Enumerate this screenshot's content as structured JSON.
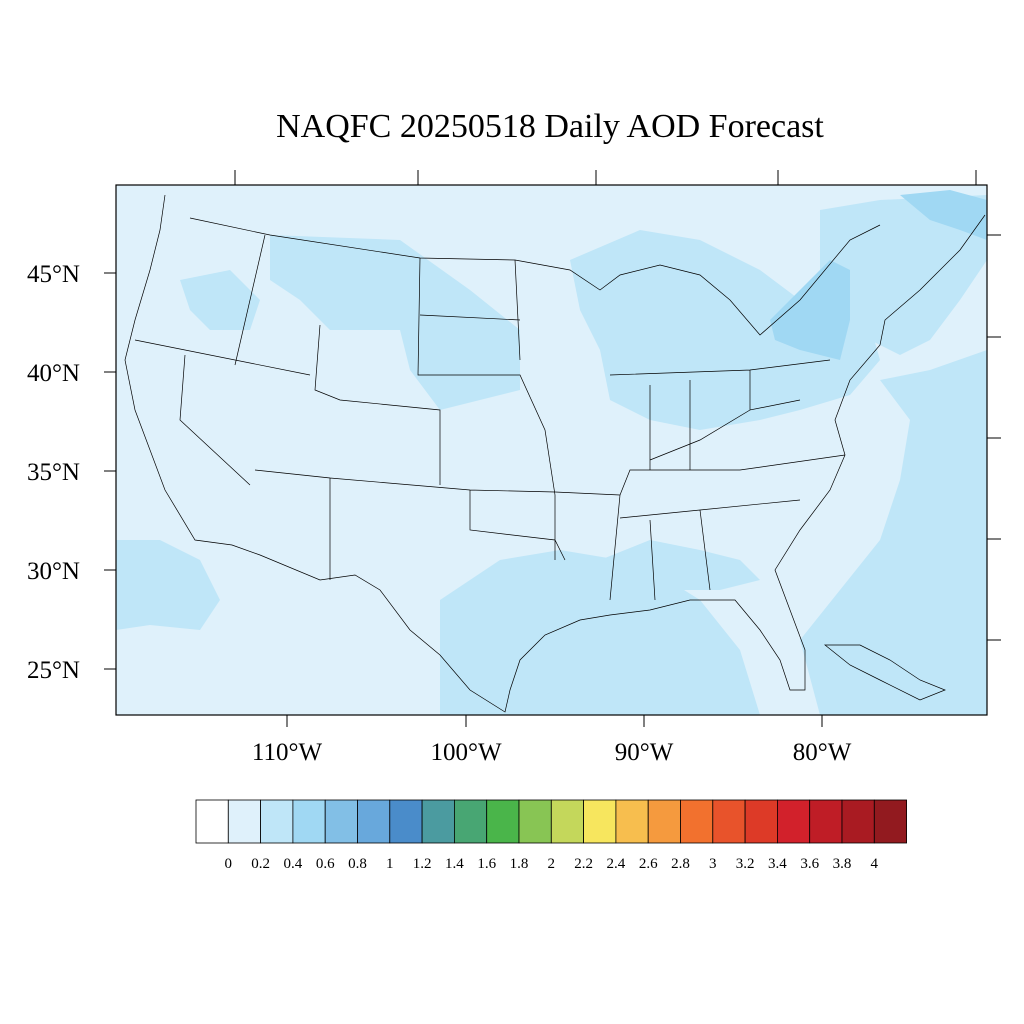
{
  "title": "NAQFC 20250518 Daily AOD Forecast",
  "lat_labels": [
    "45°N",
    "40°N",
    "35°N",
    "30°N",
    "25°N"
  ],
  "lon_labels": [
    "110°W",
    "100°W",
    "90°W",
    "80°W"
  ],
  "colorbar": {
    "colors": [
      "#ffffff",
      "#dff1fb",
      "#bfe6f8",
      "#a0d8f3",
      "#82bfe6",
      "#68a8dc",
      "#4a8cca",
      "#4b9ba0",
      "#48a673",
      "#4ab54a",
      "#88c554",
      "#c4d75b",
      "#f7e65e",
      "#f7be4e",
      "#f59a3e",
      "#f2712e",
      "#e8532b",
      "#dd3a27",
      "#d2212b",
      "#bf1d26",
      "#a91b22",
      "#921a1f"
    ],
    "labels": [
      "0",
      "0.2",
      "0.4",
      "0.6",
      "0.8",
      "1",
      "1.2",
      "1.4",
      "1.6",
      "1.8",
      "2",
      "2.2",
      "2.4",
      "2.6",
      "2.8",
      "3",
      "3.2",
      "3.4",
      "3.6",
      "3.8",
      "4"
    ]
  },
  "field_colors": {
    "background": "#dff1fb",
    "elevated": "#bfe6f8",
    "high": "#a0d8f3"
  }
}
